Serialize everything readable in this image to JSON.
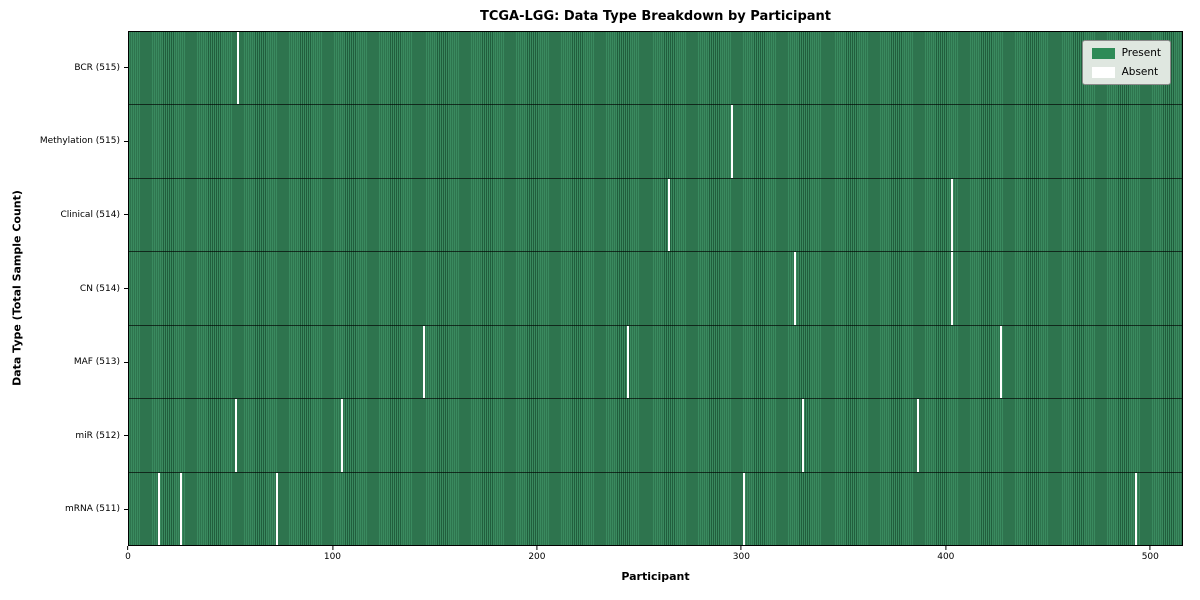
{
  "title": "TCGA-LGG: Data Type Breakdown by Participant",
  "xlabel": "Participant",
  "ylabel": "Data Type (Total Sample Count)",
  "legend": {
    "present_label": "Present",
    "absent_label": "Absent"
  },
  "colors": {
    "present": "#2e8b57",
    "present_stripe_dark": "#215e3d",
    "absent": "#ffffff",
    "legend_bg": "#dfe7e0",
    "axis": "#000000"
  },
  "chart_data": {
    "type": "heatmap",
    "title": "TCGA-LGG: Data Type Breakdown by Participant",
    "xlabel": "Participant",
    "ylabel": "Data Type (Total Sample Count)",
    "legend_entries": [
      "Present",
      "Absent"
    ],
    "legend_position": "upper right",
    "n_participants": 516,
    "xlim": [
      0,
      516
    ],
    "x_ticks": [
      0,
      100,
      200,
      300,
      400,
      500
    ],
    "grid": false,
    "rows": [
      {
        "label": "BCR (515)",
        "data_type": "BCR",
        "present_count": 515,
        "absent_participants": [
          53
        ]
      },
      {
        "label": "Methylation (515)",
        "data_type": "Methylation",
        "present_count": 515,
        "absent_participants": [
          295
        ]
      },
      {
        "label": "Clinical (514)",
        "data_type": "Clinical",
        "present_count": 514,
        "absent_participants": [
          264,
          403
        ]
      },
      {
        "label": "CN (514)",
        "data_type": "CN",
        "present_count": 514,
        "absent_participants": [
          326,
          403
        ]
      },
      {
        "label": "MAF (513)",
        "data_type": "MAF",
        "present_count": 513,
        "absent_participants": [
          144,
          244,
          427
        ]
      },
      {
        "label": "miR (512)",
        "data_type": "miR",
        "present_count": 512,
        "absent_participants": [
          52,
          104,
          330,
          386
        ]
      },
      {
        "label": "mRNA (511)",
        "data_type": "mRNA",
        "present_count": 511,
        "absent_participants": [
          14,
          25,
          72,
          301,
          493
        ]
      }
    ]
  }
}
